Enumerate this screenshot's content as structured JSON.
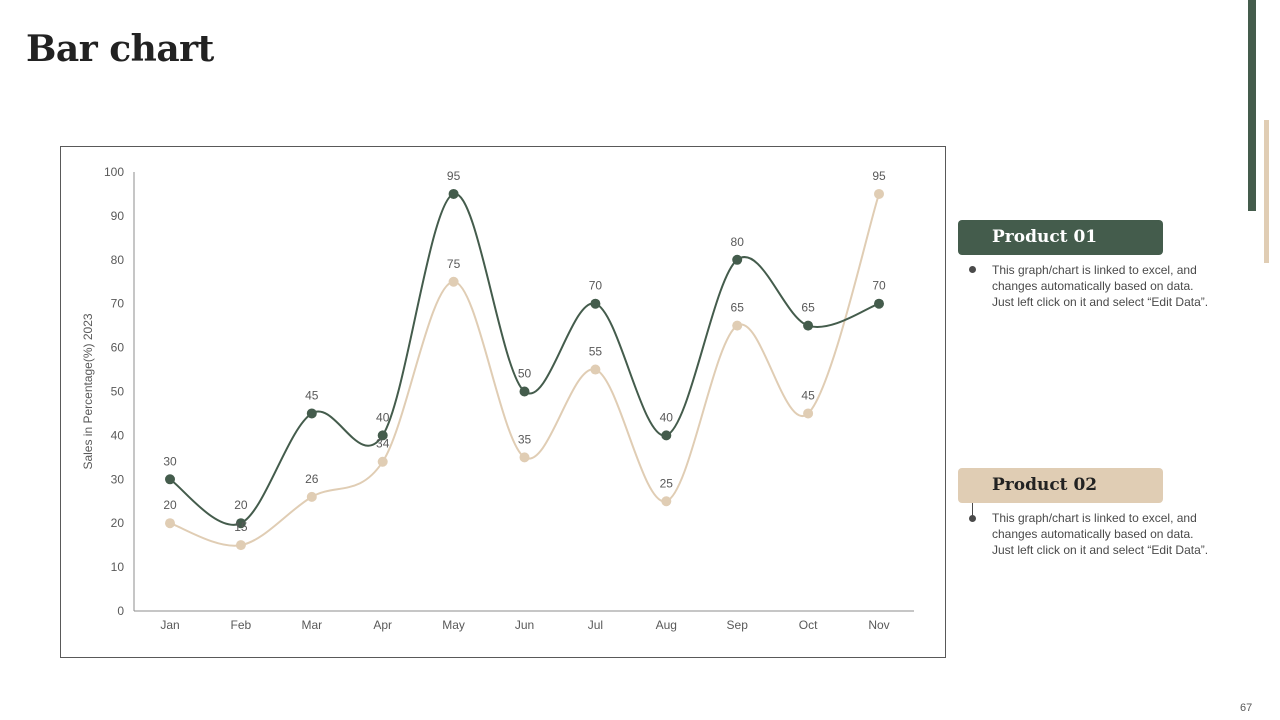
{
  "slide": {
    "title": "Bar chart",
    "page_number": "67"
  },
  "legend": {
    "product1": {
      "label": "Product 01",
      "description": "This graph/chart is linked to excel, and changes automatically based on data. Just left click on it and select “Edit Data”.",
      "color": "#445c4c"
    },
    "product2": {
      "label": "Product 02",
      "description": "This graph/chart is linked to excel, and changes automatically based on data. Just left click on it and select “Edit Data”.",
      "color": "#e0cdb4"
    }
  },
  "colors": {
    "accent_dark": "#445c4c",
    "accent_light": "#e0cdb4"
  },
  "chart_data": {
    "type": "line",
    "title": "",
    "xlabel": "",
    "ylabel": "Sales in Percentage(%) 2023",
    "categories": [
      "Jan",
      "Feb",
      "Mar",
      "Apr",
      "May",
      "Jun",
      "Jul",
      "Aug",
      "Sep",
      "Oct",
      "Nov"
    ],
    "ylim": [
      0,
      100
    ],
    "yticks": [
      0,
      10,
      20,
      30,
      40,
      50,
      60,
      70,
      80,
      90,
      100
    ],
    "smooth": true,
    "grid": false,
    "series": [
      {
        "name": "Product 01",
        "color": "#445c4c",
        "values": [
          30,
          20,
          45,
          40,
          95,
          50,
          70,
          40,
          80,
          65,
          70
        ]
      },
      {
        "name": "Product 02",
        "color": "#e0cdb4",
        "values": [
          20,
          15,
          26,
          34,
          75,
          35,
          55,
          25,
          65,
          45,
          95
        ]
      }
    ]
  }
}
